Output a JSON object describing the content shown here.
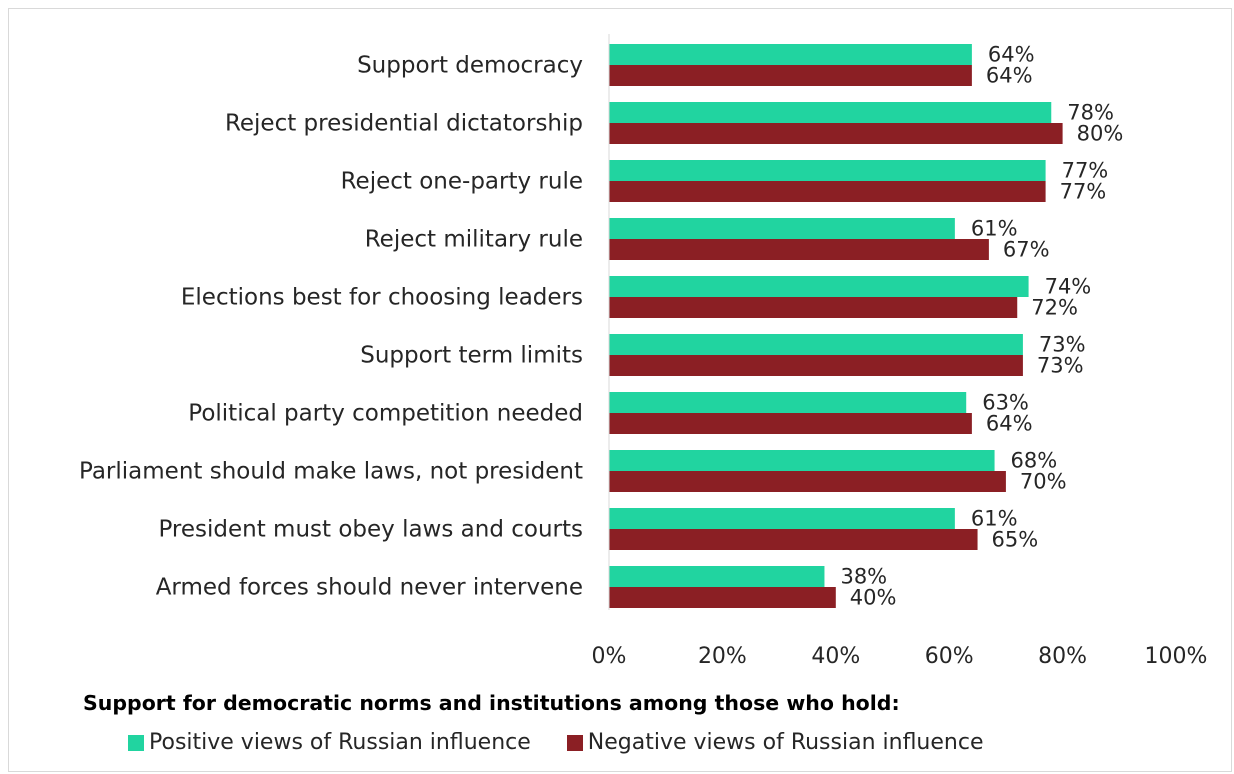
{
  "chart_data": {
    "type": "bar",
    "orientation": "horizontal",
    "categories": [
      "Support democracy",
      "Reject presidential dictatorship",
      "Reject one-party rule",
      "Reject military rule",
      "Elections best for choosing leaders",
      "Support term limits",
      "Political party competition needed",
      "Parliament should make laws, not president",
      "President must obey laws and courts",
      "Armed forces should never intervene"
    ],
    "series": [
      {
        "name": "Positive views of Russian influence",
        "color": "#21d4a0",
        "values": [
          64,
          78,
          77,
          61,
          74,
          73,
          63,
          68,
          61,
          38
        ]
      },
      {
        "name": "Negative views of Russian influence",
        "color": "#8b1f24",
        "values": [
          64,
          80,
          77,
          67,
          72,
          73,
          64,
          70,
          65,
          40
        ]
      }
    ],
    "value_suffix": "%",
    "xlim": [
      0,
      100
    ],
    "xticks": [
      0,
      20,
      40,
      60,
      80,
      100
    ],
    "xtick_labels": [
      "0%",
      "20%",
      "40%",
      "60%",
      "80%",
      "100%"
    ],
    "grid": false,
    "legend_title": "Support for democratic norms and institutions among those who hold:",
    "legend_placement": "bottom"
  }
}
